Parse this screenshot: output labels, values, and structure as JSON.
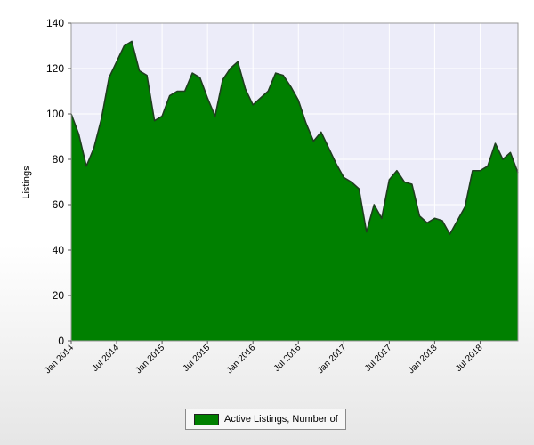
{
  "chart_data": {
    "type": "area",
    "xlabel": "",
    "ylabel": "Listings",
    "ylim": [
      0,
      140
    ],
    "y_ticks": [
      0,
      20,
      40,
      60,
      80,
      100,
      120,
      140
    ],
    "x_tick_labels": [
      "Jan 2014",
      "Jul 2014",
      "Jan 2015",
      "Jul 2015",
      "Jan 2016",
      "Jul 2016",
      "Jan 2017",
      "Jul 2017",
      "Jan 2018",
      "Jul 2018"
    ],
    "grid": true,
    "legend_position": "bottom-center",
    "colors": {
      "fill": "#008000",
      "line": "#1f3f1f",
      "plot_background": "#ececf9",
      "grid": "#ffffff"
    },
    "series": [
      {
        "name": "Active Listings, Number of",
        "x": [
          "2014-01",
          "2014-02",
          "2014-03",
          "2014-04",
          "2014-05",
          "2014-06",
          "2014-07",
          "2014-08",
          "2014-09",
          "2014-10",
          "2014-11",
          "2014-12",
          "2015-01",
          "2015-02",
          "2015-03",
          "2015-04",
          "2015-05",
          "2015-06",
          "2015-07",
          "2015-08",
          "2015-09",
          "2015-10",
          "2015-11",
          "2015-12",
          "2016-01",
          "2016-02",
          "2016-03",
          "2016-04",
          "2016-05",
          "2016-06",
          "2016-07",
          "2016-08",
          "2016-09",
          "2016-10",
          "2016-11",
          "2016-12",
          "2017-01",
          "2017-02",
          "2017-03",
          "2017-04",
          "2017-05",
          "2017-06",
          "2017-07",
          "2017-08",
          "2017-09",
          "2017-10",
          "2017-11",
          "2017-12",
          "2018-01",
          "2018-02",
          "2018-03",
          "2018-04",
          "2018-05",
          "2018-06",
          "2018-07",
          "2018-08",
          "2018-09",
          "2018-10",
          "2018-11",
          "2018-12"
        ],
        "values": [
          100,
          91,
          77,
          85,
          98,
          116,
          123,
          130,
          132,
          119,
          117,
          97,
          99,
          108,
          110,
          110,
          118,
          116,
          107,
          99,
          115,
          120,
          123,
          111,
          104,
          107,
          110,
          118,
          117,
          112,
          106,
          96,
          88,
          92,
          85,
          78,
          72,
          70,
          67,
          48,
          60,
          54,
          71,
          75,
          70,
          69,
          55,
          52,
          54,
          53,
          47,
          53,
          59,
          75,
          75,
          77,
          87,
          80,
          83,
          74
        ]
      }
    ]
  }
}
